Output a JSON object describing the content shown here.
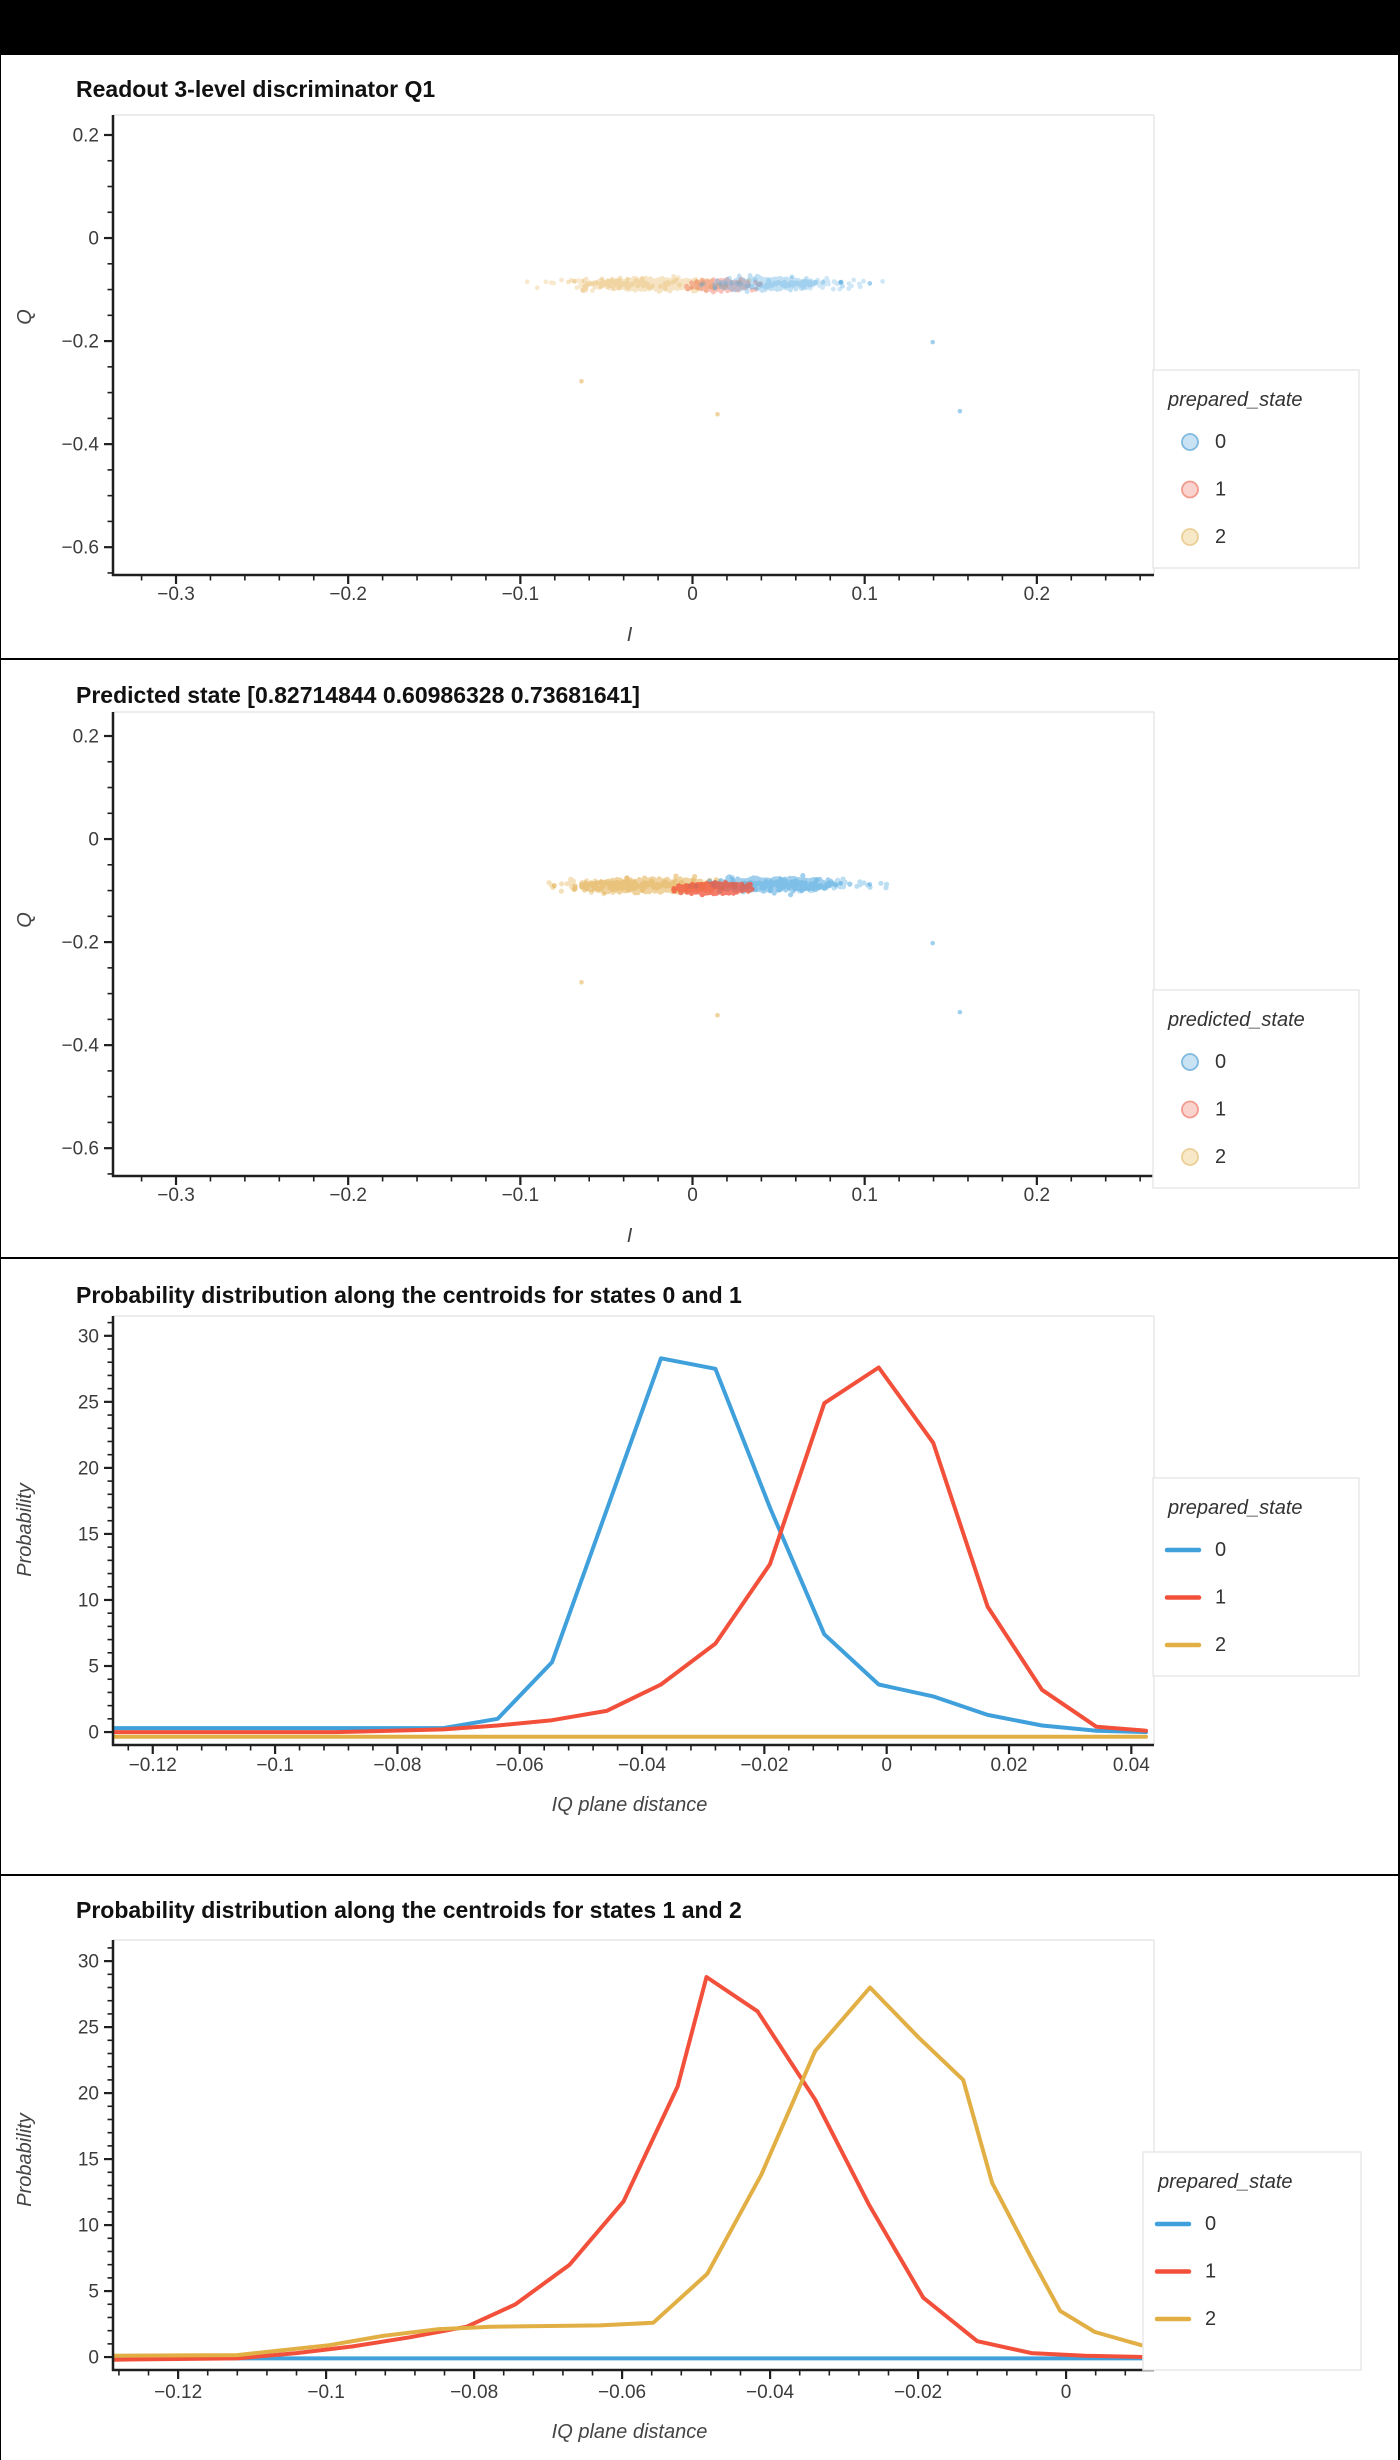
{
  "app": {
    "background": "#000000",
    "panel_background": "#ffffff"
  },
  "colors": {
    "blue": "#3FA0DC",
    "red": "#F2503A",
    "yellow": "#E2AF45",
    "scatter_yellow": "#E0A53C",
    "legend_fill_blue": "#C9E2F4",
    "legend_stroke_blue": "#7FB9E0",
    "legend_fill_red": "#FAD3CF",
    "legend_stroke_red": "#F29A8C",
    "legend_fill_yellow": "#F7E8C8",
    "legend_stroke_yellow": "#EBCF96",
    "axis_line": "#1f1f1f",
    "tick_label": "#3c3c3c",
    "axis_title": "#444444",
    "plot_border": "#e7e7e7",
    "legend_border": "#e8e8e8"
  },
  "chart_data": {
    "panels": [
      {
        "type": "scatter",
        "title": "Readout 3-level discriminator Q1",
        "xlabel": "I",
        "ylabel": "Q",
        "xlim": [
          -0.3366,
          0.2634
        ],
        "ylim": [
          -0.654,
          0.2388
        ],
        "x_ticks": [
          {
            "v": -0.3,
            "label": "−0.3"
          },
          {
            "v": -0.2,
            "label": "−0.2"
          },
          {
            "v": -0.1,
            "label": "−0.1"
          },
          {
            "v": 0,
            "label": "0"
          },
          {
            "v": 0.1,
            "label": "0.1"
          },
          {
            "v": 0.2,
            "label": "0.2"
          }
        ],
        "y_ticks": [
          {
            "v": 0.2,
            "label": "0.2"
          },
          {
            "v": 0,
            "label": "0"
          },
          {
            "v": -0.2,
            "label": "−0.2"
          },
          {
            "v": -0.4,
            "label": "−0.4"
          },
          {
            "v": -0.6,
            "label": "−0.6"
          }
        ],
        "x_minor_step": 0.02,
        "y_minor_step": 0.05,
        "legend": {
          "title": "prepared_state",
          "marker": "circle",
          "items": [
            {
              "label": "0",
              "color": "blue"
            },
            {
              "label": "1",
              "color": "red"
            },
            {
              "label": "2",
              "color": "yellow"
            }
          ]
        },
        "clusters": [
          {
            "state": "2",
            "color": "scatter_yellow",
            "cx": -0.023,
            "cy": -0.09,
            "sx": 0.016,
            "sy": 0.0046,
            "n": 900,
            "r": 2.4,
            "alpha": 0.3,
            "seed": 11
          },
          {
            "state": "2",
            "color": "scatter_yellow",
            "cx": -0.038,
            "cy": -0.09,
            "sx": 0.022,
            "sy": 0.005,
            "n": 90,
            "r": 2.4,
            "alpha": 0.25,
            "seed": 12
          },
          {
            "state": "1",
            "color": "red",
            "cx": 0.016,
            "cy": -0.092,
            "sx": 0.0075,
            "sy": 0.0042,
            "n": 420,
            "r": 2.4,
            "alpha": 0.35,
            "seed": 13
          },
          {
            "state": "0",
            "color": "blue",
            "cx": 0.042,
            "cy": -0.089,
            "sx": 0.0125,
            "sy": 0.0048,
            "n": 650,
            "r": 2.4,
            "alpha": 0.32,
            "seed": 14
          },
          {
            "state": "0",
            "color": "blue",
            "cx": 0.055,
            "cy": -0.089,
            "sx": 0.02,
            "sy": 0.005,
            "n": 90,
            "r": 2.4,
            "alpha": 0.25,
            "seed": 15
          }
        ],
        "strays": [
          {
            "state": "2",
            "color": "scatter_yellow",
            "x": -0.0645,
            "y": -0.278
          },
          {
            "state": "2",
            "color": "scatter_yellow",
            "x": 0.0145,
            "y": -0.342
          },
          {
            "state": "0",
            "color": "blue",
            "x": 0.1395,
            "y": -0.202
          },
          {
            "state": "0",
            "color": "blue",
            "x": 0.1553,
            "y": -0.336
          },
          {
            "state": "0",
            "color": "blue",
            "x": 0.103,
            "y": -0.088
          },
          {
            "state": "0",
            "color": "blue",
            "x": 0.086,
            "y": -0.086
          }
        ]
      },
      {
        "type": "scatter",
        "title": "Predicted state [0.82714844 0.60986328 0.73681641]",
        "xlabel": "I",
        "ylabel": "Q",
        "xlim": [
          -0.3366,
          0.2634
        ],
        "ylim": [
          -0.654,
          0.2466
        ],
        "x_ticks": [
          {
            "v": -0.3,
            "label": "−0.3"
          },
          {
            "v": -0.2,
            "label": "−0.2"
          },
          {
            "v": -0.1,
            "label": "−0.1"
          },
          {
            "v": 0,
            "label": "0"
          },
          {
            "v": 0.1,
            "label": "0.1"
          },
          {
            "v": 0.2,
            "label": "0.2"
          }
        ],
        "y_ticks": [
          {
            "v": 0.2,
            "label": "0.2"
          },
          {
            "v": 0,
            "label": "0"
          },
          {
            "v": -0.2,
            "label": "−0.2"
          },
          {
            "v": -0.4,
            "label": "−0.4"
          },
          {
            "v": -0.6,
            "label": "−0.6"
          }
        ],
        "x_minor_step": 0.02,
        "y_minor_step": 0.05,
        "legend": {
          "title": "predicted_state",
          "marker": "circle",
          "items": [
            {
              "label": "0",
              "color": "blue"
            },
            {
              "label": "1",
              "color": "red"
            },
            {
              "label": "2",
              "color": "yellow"
            }
          ]
        },
        "clusters": [
          {
            "state": "2",
            "color": "scatter_yellow",
            "cx": -0.024,
            "cy": -0.09,
            "sx": 0.016,
            "sy": 0.0046,
            "n": 1600,
            "r": 2.6,
            "alpha": 0.5,
            "seed": 21
          },
          {
            "state": "2",
            "color": "scatter_yellow",
            "cx": -0.038,
            "cy": -0.09,
            "sx": 0.022,
            "sy": 0.005,
            "n": 150,
            "r": 2.6,
            "alpha": 0.35,
            "seed": 22
          },
          {
            "state": "0",
            "color": "blue",
            "cx": 0.046,
            "cy": -0.088,
            "sx": 0.013,
            "sy": 0.0048,
            "n": 1500,
            "r": 2.6,
            "alpha": 0.5,
            "seed": 24
          },
          {
            "state": "0",
            "color": "blue",
            "cx": 0.058,
            "cy": -0.089,
            "sx": 0.02,
            "sy": 0.005,
            "n": 140,
            "r": 2.6,
            "alpha": 0.35,
            "seed": 25
          },
          {
            "state": "1",
            "color": "red",
            "cx": 0.013,
            "cy": -0.096,
            "sx": 0.0078,
            "sy": 0.0036,
            "n": 1500,
            "r": 2.6,
            "alpha": 0.75,
            "seed": 23
          }
        ],
        "strays": [
          {
            "state": "2",
            "color": "scatter_yellow",
            "x": -0.0645,
            "y": -0.278
          },
          {
            "state": "2",
            "color": "scatter_yellow",
            "x": 0.0145,
            "y": -0.342
          },
          {
            "state": "0",
            "color": "blue",
            "x": 0.1395,
            "y": -0.202
          },
          {
            "state": "0",
            "color": "blue",
            "x": 0.1553,
            "y": -0.336
          },
          {
            "state": "0",
            "color": "blue",
            "x": 0.103,
            "y": -0.088
          },
          {
            "state": "0",
            "color": "blue",
            "x": 0.086,
            "y": -0.086
          }
        ]
      },
      {
        "type": "line",
        "title": "Probability distribution along the centroids for states 0 and 1",
        "xlabel": "IQ plane distance",
        "ylabel": "Probability",
        "xlim": [
          -0.1265,
          0.0424
        ],
        "ylim": [
          -0.98,
          31.5
        ],
        "x_ticks": [
          {
            "v": -0.12,
            "label": "−0.12"
          },
          {
            "v": -0.1,
            "label": "−0.1"
          },
          {
            "v": -0.08,
            "label": "−0.08"
          },
          {
            "v": -0.06,
            "label": "−0.06"
          },
          {
            "v": -0.04,
            "label": "−0.04"
          },
          {
            "v": -0.02,
            "label": "−0.02"
          },
          {
            "v": 0,
            "label": "0"
          },
          {
            "v": 0.02,
            "label": "0.02"
          },
          {
            "v": 0.04,
            "label": "0.04"
          }
        ],
        "y_ticks": [
          {
            "v": 0,
            "label": "0"
          },
          {
            "v": 5,
            "label": "5"
          },
          {
            "v": 10,
            "label": "10"
          },
          {
            "v": 15,
            "label": "15"
          },
          {
            "v": 20,
            "label": "20"
          },
          {
            "v": 25,
            "label": "25"
          },
          {
            "v": 30,
            "label": "30"
          }
        ],
        "x_minor_step": 0.004,
        "y_minor_step": 1,
        "legend": {
          "title": "prepared_state",
          "marker": "line",
          "items": [
            {
              "label": "0",
              "color": "blue"
            },
            {
              "label": "1",
              "color": "red"
            },
            {
              "label": "2",
              "color": "yellow"
            }
          ]
        },
        "series": [
          {
            "state": "0",
            "color": "blue",
            "points": [
              [
                -0.1265,
                0.3
              ],
              [
                -0.09,
                0.3
              ],
              [
                -0.0725,
                0.3
              ],
              [
                -0.0636,
                1.0
              ],
              [
                -0.0547,
                5.3
              ],
              [
                -0.0458,
                16.8
              ],
              [
                -0.0369,
                28.3
              ],
              [
                -0.028,
                27.5
              ],
              [
                -0.0191,
                17.0
              ],
              [
                -0.0102,
                7.4
              ],
              [
                -0.0013,
                3.6
              ],
              [
                0.0076,
                2.7
              ],
              [
                0.0165,
                1.3
              ],
              [
                0.0254,
                0.5
              ],
              [
                0.0343,
                0.1
              ],
              [
                0.0424,
                0.0
              ]
            ]
          },
          {
            "state": "1",
            "color": "red",
            "points": [
              [
                -0.1265,
                0.0
              ],
              [
                -0.09,
                0.0
              ],
              [
                -0.0725,
                0.2
              ],
              [
                -0.0636,
                0.5
              ],
              [
                -0.0547,
                0.9
              ],
              [
                -0.0458,
                1.6
              ],
              [
                -0.0369,
                3.6
              ],
              [
                -0.028,
                6.7
              ],
              [
                -0.0191,
                12.7
              ],
              [
                -0.0102,
                24.9
              ],
              [
                -0.0013,
                27.6
              ],
              [
                0.0076,
                21.9
              ],
              [
                0.0165,
                9.5
              ],
              [
                0.0254,
                3.2
              ],
              [
                0.0343,
                0.4
              ],
              [
                0.0424,
                0.1
              ]
            ]
          },
          {
            "state": "2",
            "color": "yellow",
            "points": [
              [
                -0.1265,
                -0.35
              ],
              [
                0.0424,
                -0.35
              ]
            ]
          }
        ]
      },
      {
        "type": "line",
        "title": "Probability distribution along the centroids for states 1 and 2",
        "xlabel": "IQ plane distance",
        "ylabel": "Probability",
        "xlim": [
          -0.1288,
          0.0108
        ],
        "ylim": [
          -0.98,
          31.6
        ],
        "x_ticks": [
          {
            "v": -0.12,
            "label": "−0.12"
          },
          {
            "v": -0.1,
            "label": "−0.1"
          },
          {
            "v": -0.08,
            "label": "−0.08"
          },
          {
            "v": -0.06,
            "label": "−0.06"
          },
          {
            "v": -0.04,
            "label": "−0.04"
          },
          {
            "v": -0.02,
            "label": "−0.02"
          },
          {
            "v": 0,
            "label": "0"
          }
        ],
        "y_ticks": [
          {
            "v": 0,
            "label": "0"
          },
          {
            "v": 5,
            "label": "5"
          },
          {
            "v": 10,
            "label": "10"
          },
          {
            "v": 15,
            "label": "15"
          },
          {
            "v": 20,
            "label": "20"
          },
          {
            "v": 25,
            "label": "25"
          },
          {
            "v": 30,
            "label": "30"
          }
        ],
        "x_minor_step": 0.004,
        "y_minor_step": 1,
        "legend": {
          "title": "prepared_state",
          "marker": "line",
          "items": [
            {
              "label": "0",
              "color": "blue"
            },
            {
              "label": "1",
              "color": "red"
            },
            {
              "label": "2",
              "color": "yellow"
            }
          ]
        },
        "series": [
          {
            "state": "0",
            "color": "blue",
            "points": [
              [
                -0.1288,
                -0.1
              ],
              [
                0.0108,
                -0.1
              ]
            ]
          },
          {
            "state": "1",
            "color": "red",
            "points": [
              [
                -0.1288,
                -0.2
              ],
              [
                -0.112,
                -0.1
              ],
              [
                -0.104,
                0.3
              ],
              [
                -0.0965,
                0.8
              ],
              [
                -0.0887,
                1.5
              ],
              [
                -0.081,
                2.3
              ],
              [
                -0.0744,
                4.0
              ],
              [
                -0.0671,
                7.0
              ],
              [
                -0.0598,
                11.8
              ],
              [
                -0.0525,
                20.5
              ],
              [
                -0.0486,
                28.8
              ],
              [
                -0.0417,
                26.2
              ],
              [
                -0.0339,
                19.5
              ],
              [
                -0.0266,
                11.5
              ],
              [
                -0.0193,
                4.5
              ],
              [
                -0.012,
                1.2
              ],
              [
                -0.0047,
                0.3
              ],
              [
                0.0026,
                0.1
              ],
              [
                0.0108,
                0.0
              ]
            ]
          },
          {
            "state": "2",
            "color": "yellow",
            "points": [
              [
                -0.1288,
                0.1
              ],
              [
                -0.112,
                0.15
              ],
              [
                -0.0996,
                0.9
              ],
              [
                -0.0923,
                1.6
              ],
              [
                -0.085,
                2.1
              ],
              [
                -0.0777,
                2.3
              ],
              [
                -0.063,
                2.4
              ],
              [
                -0.0558,
                2.6
              ],
              [
                -0.0485,
                6.3
              ],
              [
                -0.0412,
                13.8
              ],
              [
                -0.0339,
                23.2
              ],
              [
                -0.0265,
                28.0
              ],
              [
                -0.0199,
                24.2
              ],
              [
                -0.0139,
                21.0
              ],
              [
                -0.01,
                13.2
              ],
              [
                -0.0045,
                7.3
              ],
              [
                -0.0008,
                3.5
              ],
              [
                0.0039,
                1.9
              ],
              [
                0.0108,
                0.8
              ]
            ]
          }
        ]
      }
    ]
  }
}
